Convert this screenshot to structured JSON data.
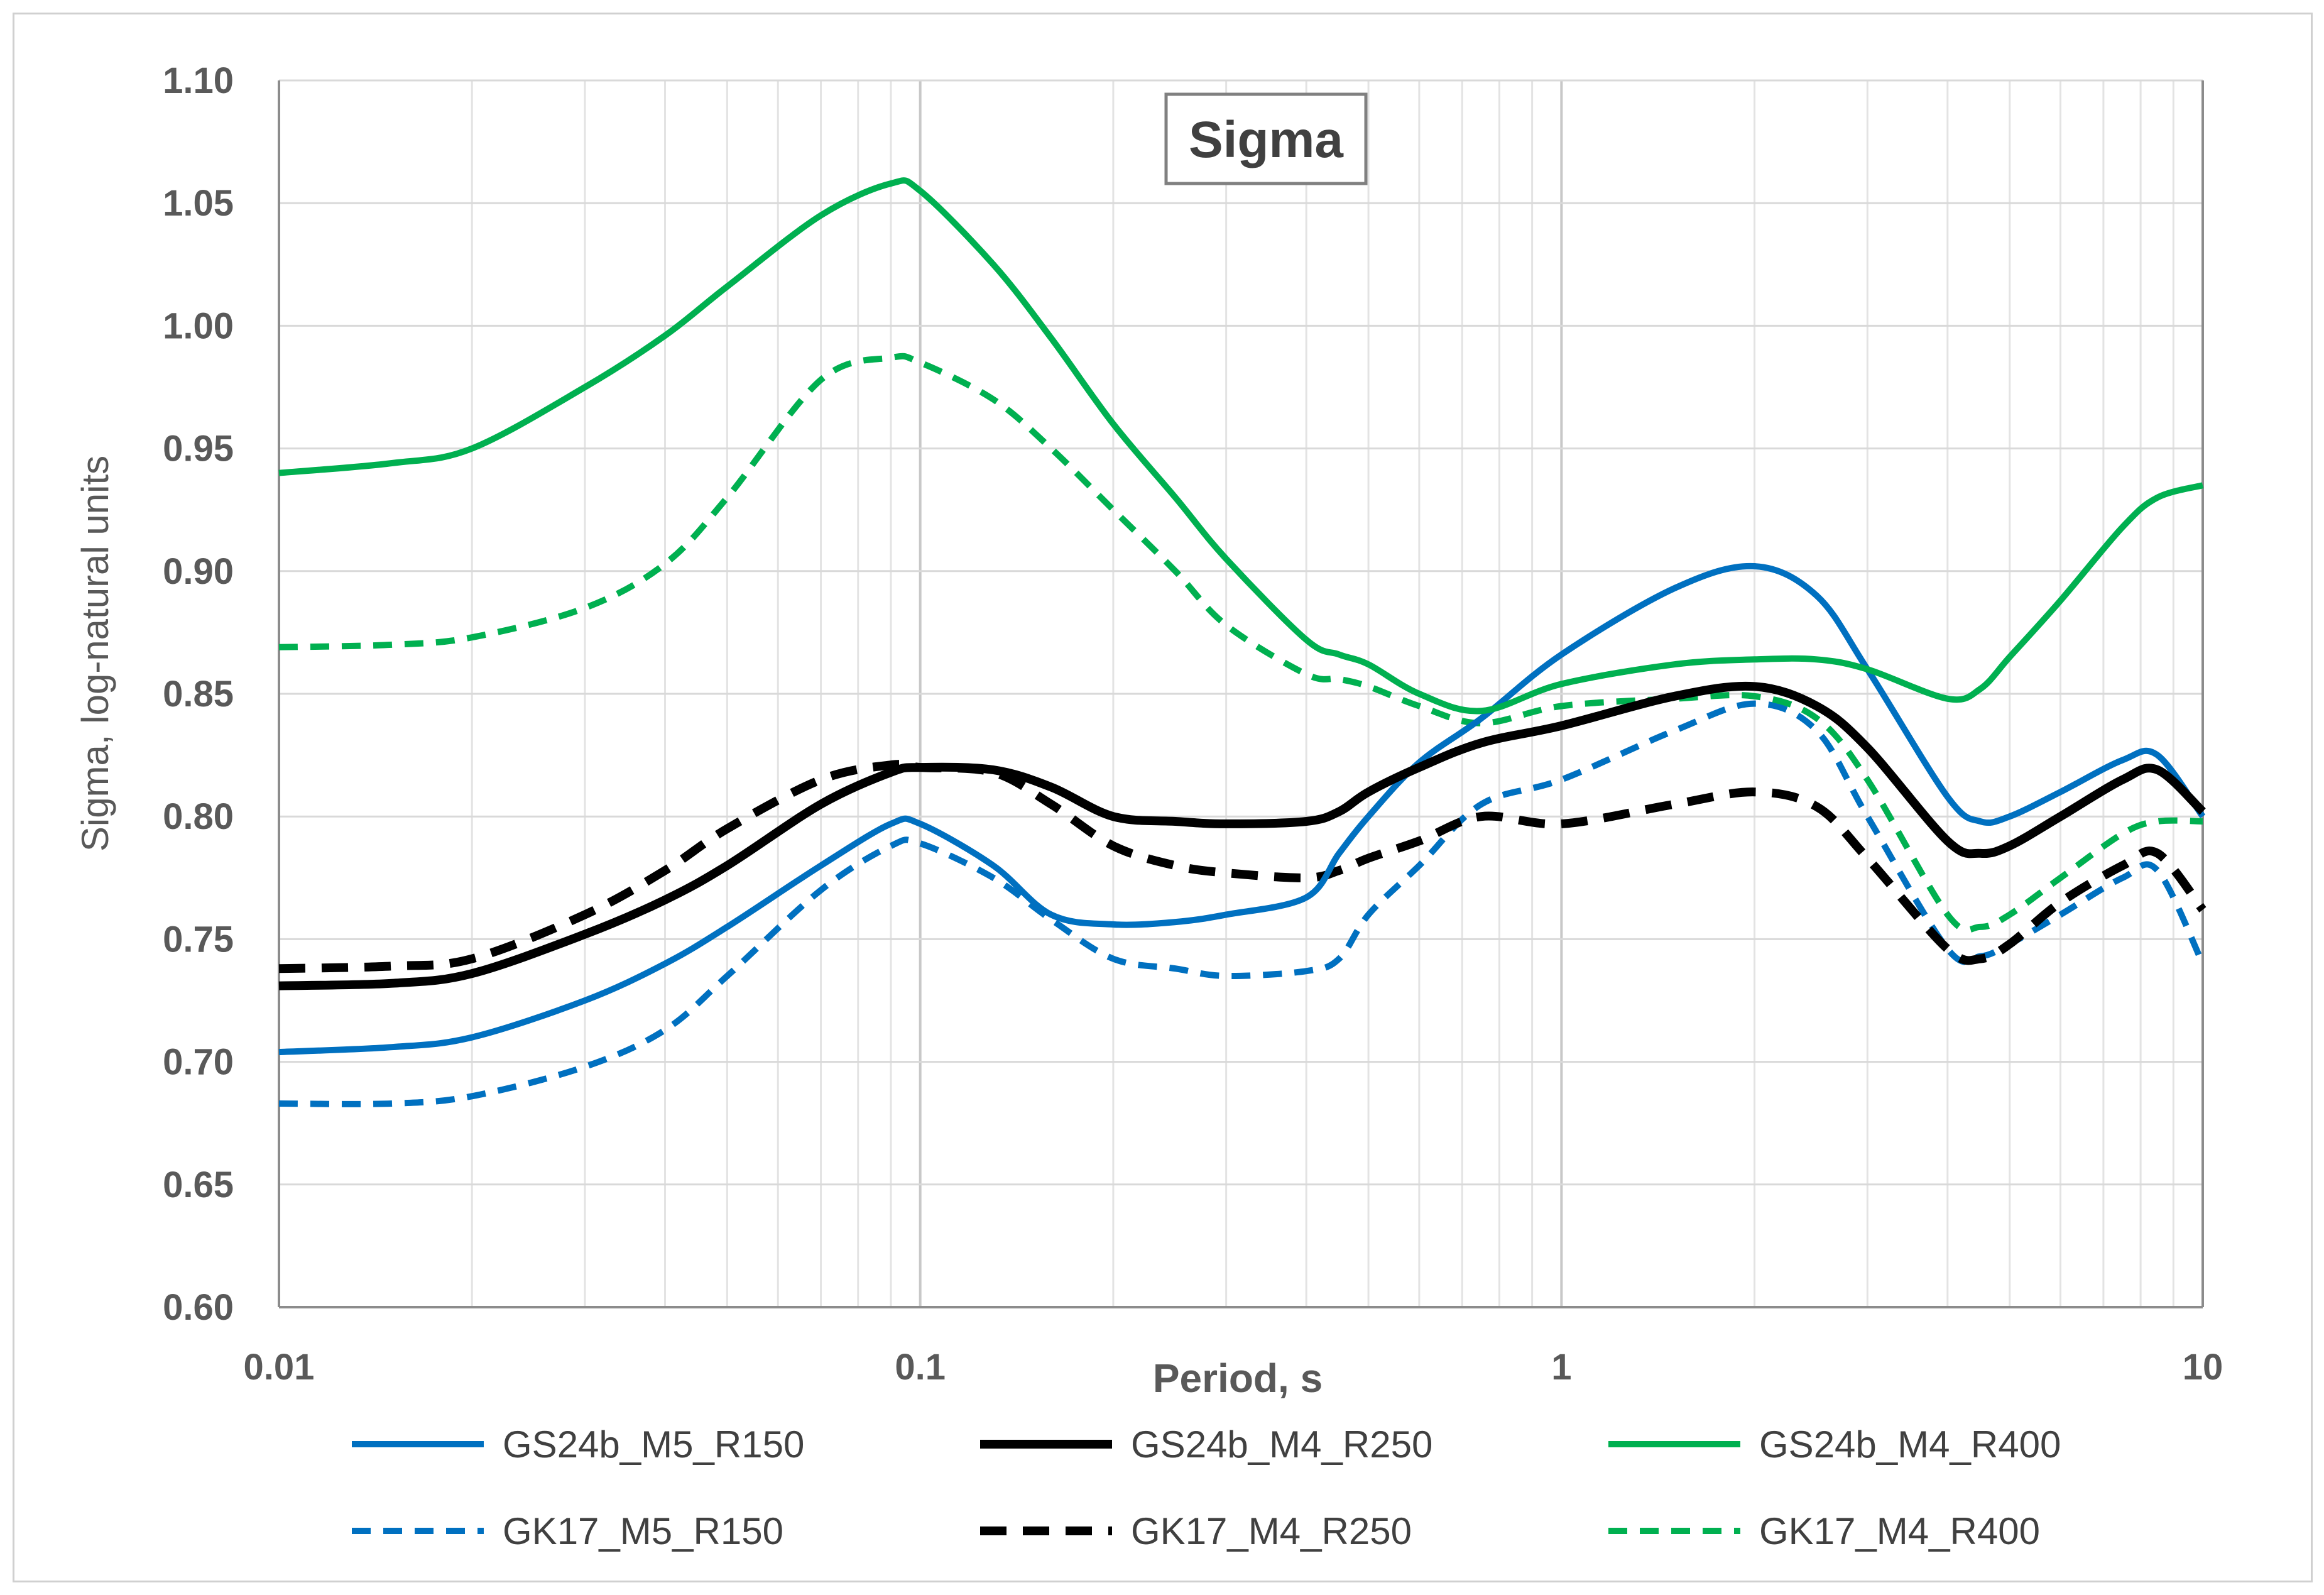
{
  "chart_data": {
    "type": "line",
    "title": "Sigma",
    "xlabel": "Period, s",
    "ylabel": "Sigma, log-natural units",
    "xscale": "log",
    "xlim": [
      0.01,
      10
    ],
    "ylim": [
      0.6,
      1.1
    ],
    "x_ticks": [
      0.01,
      0.1,
      1,
      10
    ],
    "x_tick_labels": [
      "0.01",
      "0.1",
      "1",
      "10"
    ],
    "y_ticks": [
      0.6,
      0.65,
      0.7,
      0.75,
      0.8,
      0.85,
      0.9,
      0.95,
      1.0,
      1.05,
      1.1
    ],
    "y_tick_labels": [
      "0.60",
      "0.65",
      "0.70",
      "0.75",
      "0.80",
      "0.85",
      "0.90",
      "0.95",
      "1.00",
      "1.05",
      "1.10"
    ],
    "grid": "on (major and minor log gridlines)",
    "legend_position": "bottom",
    "series": [
      {
        "name": "GS24b_M5_R150",
        "color": "#0070c0",
        "style": "solid",
        "x": [
          0.01,
          0.015,
          0.02,
          0.03,
          0.04,
          0.05,
          0.07,
          0.09,
          0.1,
          0.13,
          0.16,
          0.2,
          0.25,
          0.3,
          0.4,
          0.45,
          0.5,
          0.6,
          0.75,
          1,
          1.5,
          2,
          2.5,
          3,
          4,
          4.5,
          5,
          6,
          7.5,
          8.5,
          10
        ],
        "y": [
          0.704,
          0.706,
          0.71,
          0.725,
          0.74,
          0.755,
          0.78,
          0.797,
          0.797,
          0.78,
          0.76,
          0.756,
          0.757,
          0.76,
          0.767,
          0.785,
          0.8,
          0.822,
          0.84,
          0.866,
          0.893,
          0.902,
          0.89,
          0.86,
          0.808,
          0.798,
          0.8,
          0.81,
          0.823,
          0.825,
          0.8
        ]
      },
      {
        "name": "GS24b_M4_R250",
        "color": "#000000",
        "style": "solid",
        "x": [
          0.01,
          0.015,
          0.02,
          0.03,
          0.04,
          0.05,
          0.07,
          0.09,
          0.1,
          0.13,
          0.16,
          0.2,
          0.25,
          0.3,
          0.4,
          0.45,
          0.5,
          0.6,
          0.75,
          1,
          1.5,
          2,
          2.5,
          3,
          4,
          4.5,
          5,
          6,
          7.5,
          8.5,
          10
        ],
        "y": [
          0.731,
          0.732,
          0.736,
          0.752,
          0.766,
          0.78,
          0.805,
          0.818,
          0.82,
          0.819,
          0.812,
          0.8,
          0.798,
          0.797,
          0.798,
          0.802,
          0.81,
          0.82,
          0.83,
          0.837,
          0.849,
          0.853,
          0.845,
          0.828,
          0.79,
          0.785,
          0.788,
          0.8,
          0.815,
          0.819,
          0.802
        ]
      },
      {
        "name": "GS24b_M4_R400",
        "color": "#00b050",
        "style": "solid",
        "x": [
          0.01,
          0.015,
          0.02,
          0.03,
          0.04,
          0.05,
          0.07,
          0.09,
          0.1,
          0.13,
          0.16,
          0.2,
          0.25,
          0.3,
          0.4,
          0.45,
          0.5,
          0.6,
          0.75,
          1,
          1.5,
          2,
          2.5,
          3,
          4,
          4.5,
          5,
          6,
          7.5,
          8.5,
          10
        ],
        "y": [
          0.94,
          0.944,
          0.95,
          0.975,
          0.996,
          1.016,
          1.045,
          1.058,
          1.055,
          1.025,
          0.995,
          0.96,
          0.93,
          0.905,
          0.872,
          0.866,
          0.862,
          0.85,
          0.843,
          0.854,
          0.862,
          0.864,
          0.864,
          0.86,
          0.848,
          0.852,
          0.865,
          0.888,
          0.918,
          0.93,
          0.935
        ]
      },
      {
        "name": "GK17_M5_R150",
        "color": "#0070c0",
        "style": "dashed",
        "x": [
          0.01,
          0.015,
          0.02,
          0.03,
          0.04,
          0.05,
          0.07,
          0.09,
          0.1,
          0.13,
          0.16,
          0.2,
          0.25,
          0.3,
          0.4,
          0.45,
          0.5,
          0.6,
          0.75,
          1,
          1.5,
          2,
          2.5,
          3,
          4,
          4.5,
          5,
          6,
          7.5,
          8.5,
          10
        ],
        "y": [
          0.683,
          0.683,
          0.686,
          0.698,
          0.713,
          0.735,
          0.77,
          0.788,
          0.789,
          0.775,
          0.758,
          0.742,
          0.738,
          0.735,
          0.737,
          0.742,
          0.76,
          0.78,
          0.805,
          0.815,
          0.835,
          0.846,
          0.835,
          0.8,
          0.746,
          0.743,
          0.748,
          0.76,
          0.775,
          0.778,
          0.74
        ]
      },
      {
        "name": "GK17_M4_R250",
        "color": "#000000",
        "style": "dashed",
        "x": [
          0.01,
          0.015,
          0.02,
          0.03,
          0.04,
          0.05,
          0.07,
          0.09,
          0.1,
          0.13,
          0.16,
          0.2,
          0.25,
          0.3,
          0.4,
          0.45,
          0.5,
          0.6,
          0.75,
          1,
          1.5,
          2,
          2.5,
          3,
          4,
          4.5,
          5,
          6,
          7.5,
          8.5,
          10
        ],
        "y": [
          0.738,
          0.739,
          0.742,
          0.76,
          0.778,
          0.795,
          0.815,
          0.821,
          0.82,
          0.818,
          0.805,
          0.788,
          0.78,
          0.777,
          0.775,
          0.778,
          0.783,
          0.79,
          0.8,
          0.797,
          0.805,
          0.81,
          0.804,
          0.783,
          0.746,
          0.742,
          0.748,
          0.765,
          0.78,
          0.785,
          0.762
        ]
      },
      {
        "name": "GK17_M4_R400",
        "color": "#00b050",
        "style": "dashed",
        "x": [
          0.01,
          0.015,
          0.02,
          0.03,
          0.04,
          0.05,
          0.07,
          0.09,
          0.1,
          0.13,
          0.16,
          0.2,
          0.25,
          0.3,
          0.4,
          0.45,
          0.5,
          0.6,
          0.75,
          1,
          1.5,
          2,
          2.5,
          3,
          4,
          4.5,
          5,
          6,
          7.5,
          8.5,
          10
        ],
        "y": [
          0.869,
          0.87,
          0.873,
          0.885,
          0.903,
          0.93,
          0.978,
          0.987,
          0.985,
          0.97,
          0.95,
          0.925,
          0.9,
          0.878,
          0.858,
          0.856,
          0.853,
          0.845,
          0.838,
          0.845,
          0.848,
          0.849,
          0.84,
          0.815,
          0.76,
          0.755,
          0.76,
          0.775,
          0.793,
          0.798,
          0.798
        ]
      }
    ]
  }
}
